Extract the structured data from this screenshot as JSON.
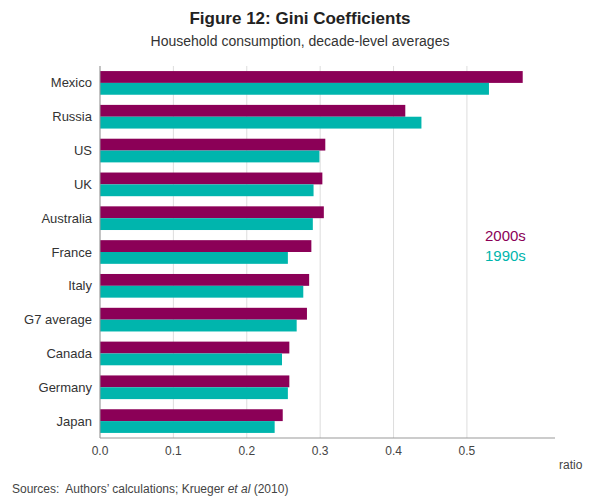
{
  "chart_data": {
    "type": "bar",
    "orientation": "horizontal",
    "title": "Figure 12: Gini Coefficients",
    "subtitle": "Household consumption, decade-level averages",
    "xlabel": "ratio",
    "annotations": [
      "Sources:  Authors’ calculations; Krueger ",
      "et al",
      " (2010)"
    ],
    "categories": [
      "Mexico",
      "Russia",
      "US",
      "UK",
      "Australia",
      "France",
      "Italy",
      "G7 average",
      "Canada",
      "Germany",
      "Japan"
    ],
    "series": [
      {
        "name": "2000s",
        "color": "#8B0057",
        "values": [
          0.576,
          0.416,
          0.307,
          0.303,
          0.305,
          0.288,
          0.285,
          0.282,
          0.258,
          0.258,
          0.249
        ]
      },
      {
        "name": "1990s",
        "color": "#00B5AD",
        "values": [
          0.53,
          0.438,
          0.299,
          0.291,
          0.29,
          0.256,
          0.277,
          0.268,
          0.248,
          0.256,
          0.238
        ]
      }
    ],
    "xlim": [
      0.0,
      0.62
    ],
    "xticks": [
      {
        "value": 0.0,
        "label": "0.0"
      },
      0.1,
      0.2,
      0.3,
      0.4,
      0.5
    ],
    "grid": true,
    "legend": "right"
  }
}
